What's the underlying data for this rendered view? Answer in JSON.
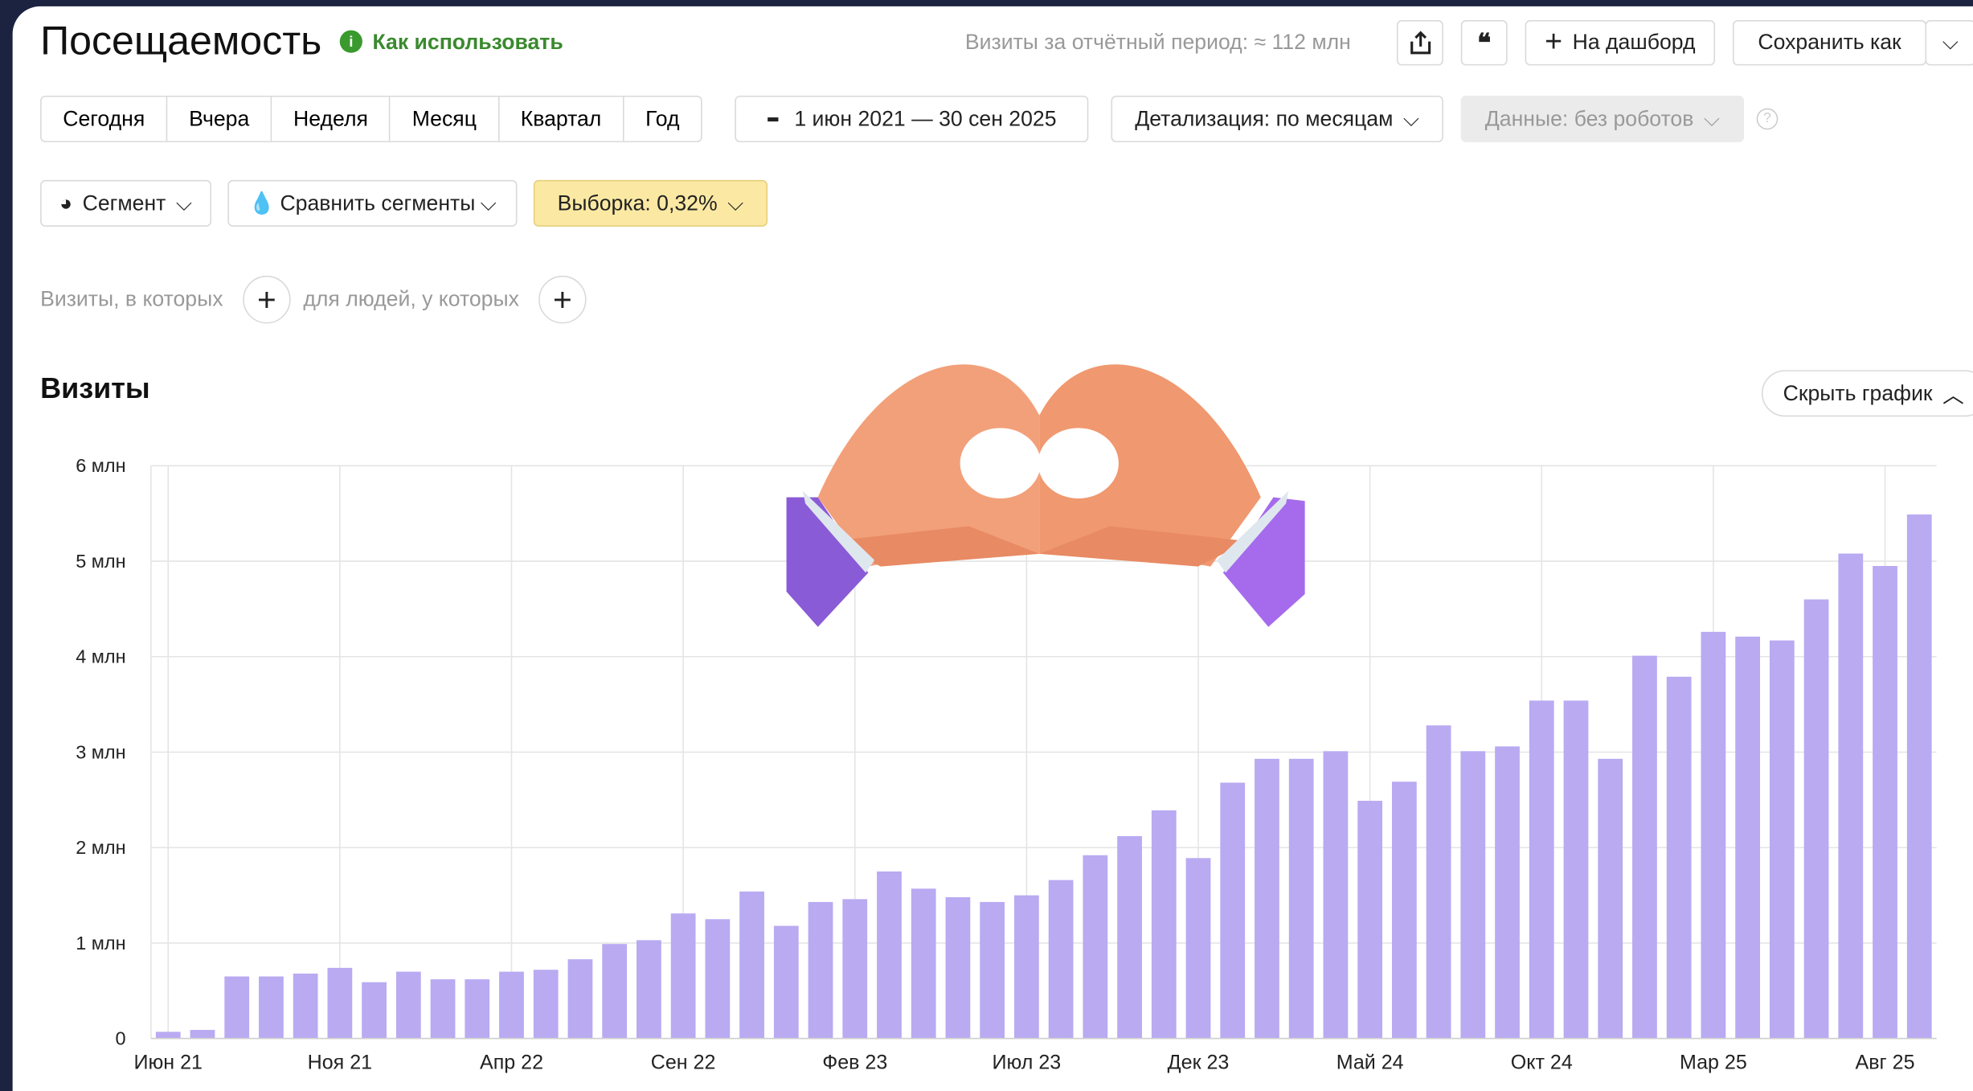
{
  "header": {
    "title": "Посещаемость",
    "help": "Как использовать",
    "summary": "Визиты за отчётный период: ≈ 112 млн",
    "dashboard": "На дашборд",
    "save": "Сохранить как"
  },
  "periods": [
    "Сегодня",
    "Вчера",
    "Неделя",
    "Месяц",
    "Квартал",
    "Год"
  ],
  "date_range": "1 июн 2021 — 30 сен 2025",
  "detail": "Детализация: по месяцам",
  "data_filter": "Данные: без роботов",
  "segment": "Сегмент",
  "compare": "Сравнить сегменты",
  "sample": "Выборка: 0,32%",
  "filters": {
    "visits": "Визиты, в которых",
    "people": "для людей, у которых"
  },
  "hide_chart": "Скрыть график",
  "chart_data": {
    "type": "bar",
    "title": "Визиты",
    "color": "#b9aaf2",
    "grid": true,
    "categories": [
      "Июн 21",
      null,
      null,
      null,
      null,
      "Ноя 21",
      null,
      null,
      null,
      null,
      "Апр 22",
      null,
      null,
      null,
      null,
      "Сен 22",
      null,
      null,
      null,
      null,
      "Фев 23",
      null,
      null,
      null,
      null,
      "Июл 23",
      null,
      null,
      null,
      null,
      "Дек 23",
      null,
      null,
      null,
      null,
      "Май 24",
      null,
      null,
      null,
      null,
      "Окт 24",
      null,
      null,
      null,
      null,
      "Мар 25",
      null,
      null,
      null,
      null,
      "Авг 25",
      null
    ],
    "values": [
      0.07,
      0.09,
      0.65,
      0.65,
      0.68,
      0.74,
      0.59,
      0.7,
      0.62,
      0.62,
      0.7,
      0.72,
      0.83,
      0.99,
      1.03,
      1.31,
      1.25,
      1.54,
      1.18,
      1.43,
      1.46,
      1.75,
      1.57,
      1.48,
      1.43,
      1.5,
      1.66,
      1.92,
      2.12,
      2.39,
      1.89,
      2.68,
      2.93,
      2.93,
      3.01,
      2.49,
      2.69,
      3.28,
      3.01,
      3.06,
      3.54,
      3.54,
      2.93,
      4.01,
      3.79,
      4.26,
      4.21,
      4.17,
      4.6,
      5.08,
      4.95,
      5.49
    ],
    "ylim": [
      0,
      6
    ],
    "yticks": [
      0,
      {
        "value": 1,
        "label": "1 млн"
      },
      {
        "value": 2,
        "label": "2 млн"
      },
      {
        "value": 3,
        "label": "3 млн"
      },
      {
        "value": 4,
        "label": "4 млн"
      },
      {
        "value": 5,
        "label": "5 млн"
      },
      {
        "value": 6,
        "label": "6 млн"
      }
    ]
  }
}
